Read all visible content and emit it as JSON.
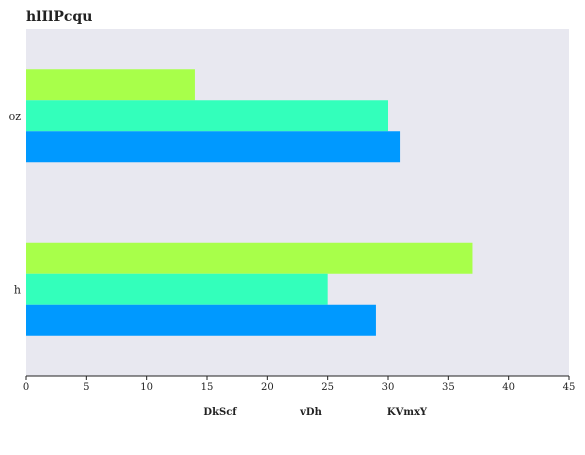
{
  "chart_data": {
    "type": "bar",
    "orientation": "horizontal",
    "title": "hlIlPcqu",
    "xlabel": "",
    "ylabel": "",
    "xlim": [
      0,
      45
    ],
    "xticks": [
      0,
      5,
      10,
      15,
      20,
      25,
      30,
      35,
      40,
      45
    ],
    "categories": [
      "oz",
      "h"
    ],
    "series": [
      {
        "name": "DkScf",
        "color": "#0099ff",
        "values": [
          31,
          29
        ]
      },
      {
        "name": "vDh",
        "color": "#33ffbb",
        "values": [
          30,
          25
        ]
      },
      {
        "name": "KVmxY",
        "color": "#a8ff4a",
        "values": [
          14,
          37
        ]
      }
    ],
    "grid": false,
    "legend_position": "bottom",
    "plot_background": "#e8e8f0"
  }
}
